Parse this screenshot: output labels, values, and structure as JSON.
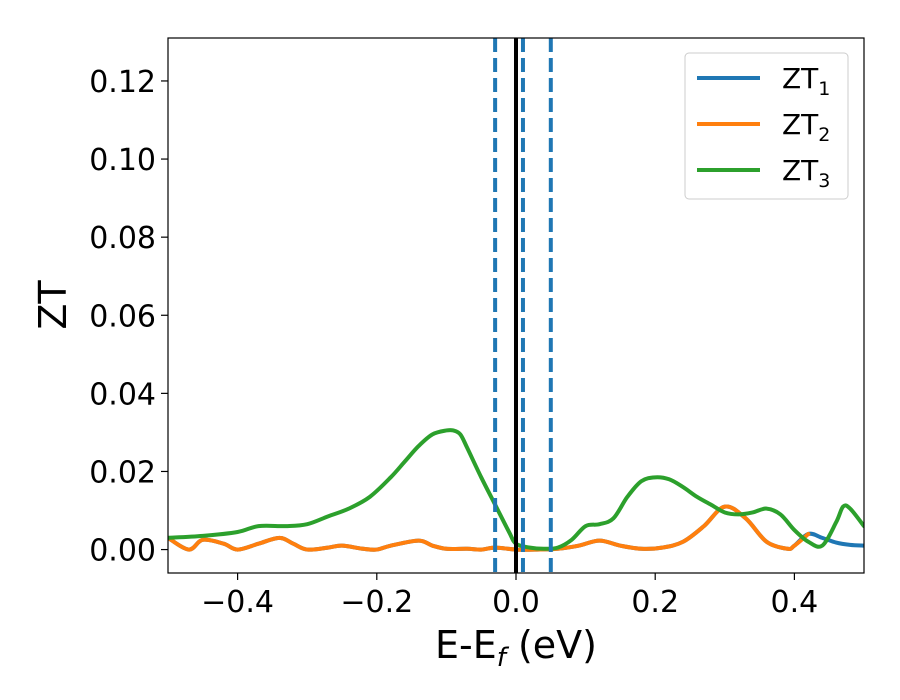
{
  "chart_data": {
    "type": "line",
    "xlabel_main": "E-E",
    "xlabel_sub": "f",
    "xlabel_unit": " (eV)",
    "ylabel": "ZT",
    "xlim": [
      -0.5,
      0.5
    ],
    "ylim": [
      -0.006,
      0.131
    ],
    "x_ticks": [
      -0.4,
      -0.2,
      0.0,
      0.2,
      0.4
    ],
    "x_tick_labels": [
      "−0.4",
      "−0.2",
      "0.0",
      "0.2",
      "0.4"
    ],
    "y_ticks": [
      0.0,
      0.02,
      0.04,
      0.06,
      0.08,
      0.1,
      0.12
    ],
    "y_tick_labels": [
      "0.00",
      "0.02",
      "0.04",
      "0.06",
      "0.08",
      "0.10",
      "0.12"
    ],
    "grid": false,
    "legend_position": "top-right",
    "vertical_lines": [
      {
        "x": 0.0,
        "style": "solid",
        "color": "#000000"
      },
      {
        "x": -0.03,
        "style": "dashed",
        "color": "#1f77b4"
      },
      {
        "x": 0.01,
        "style": "dashed",
        "color": "#1f77b4"
      },
      {
        "x": 0.05,
        "style": "dashed",
        "color": "#1f77b4"
      }
    ],
    "series": [
      {
        "name_main": "ZT",
        "name_sub": "1",
        "color": "#1f77b4",
        "x": [
          -0.5,
          -0.47,
          -0.45,
          -0.42,
          -0.4,
          -0.37,
          -0.34,
          -0.32,
          -0.3,
          -0.27,
          -0.25,
          -0.22,
          -0.2,
          -0.18,
          -0.14,
          -0.12,
          -0.1,
          -0.07,
          -0.05,
          -0.03,
          0.0,
          0.03,
          0.06,
          0.09,
          0.12,
          0.15,
          0.18,
          0.21,
          0.24,
          0.27,
          0.3,
          0.33,
          0.36,
          0.39,
          0.4,
          0.42,
          0.44,
          0.46,
          0.48,
          0.5
        ],
        "y": [
          0.003,
          0.0,
          0.0025,
          0.0015,
          0.0,
          0.0015,
          0.003,
          0.0015,
          0.0,
          0.0005,
          0.001,
          0.0002,
          0.0,
          0.001,
          0.0023,
          0.001,
          0.0002,
          0.0002,
          0.0,
          0.0005,
          0.0,
          0.0,
          0.0002,
          0.001,
          0.0023,
          0.001,
          0.0002,
          0.0005,
          0.002,
          0.006,
          0.011,
          0.008,
          0.002,
          0.0002,
          0.001,
          0.004,
          0.003,
          0.0018,
          0.0012,
          0.001
        ]
      },
      {
        "name_main": "ZT",
        "name_sub": "2",
        "color": "#ff7f0e",
        "x": [
          -0.5,
          -0.47,
          -0.45,
          -0.42,
          -0.4,
          -0.37,
          -0.34,
          -0.32,
          -0.3,
          -0.27,
          -0.25,
          -0.22,
          -0.2,
          -0.18,
          -0.14,
          -0.12,
          -0.1,
          -0.07,
          -0.05,
          -0.03,
          0.0,
          0.03,
          0.06,
          0.09,
          0.12,
          0.15,
          0.18,
          0.21,
          0.24,
          0.27,
          0.3,
          0.33,
          0.36,
          0.39,
          0.4,
          0.42
        ],
        "y": [
          0.003,
          0.0,
          0.0025,
          0.0015,
          0.0,
          0.0015,
          0.003,
          0.0015,
          0.0,
          0.0005,
          0.001,
          0.0002,
          0.0,
          0.001,
          0.0023,
          0.001,
          0.0002,
          0.0002,
          0.0,
          0.0005,
          0.0,
          0.0,
          0.0002,
          0.001,
          0.0023,
          0.001,
          0.0002,
          0.0005,
          0.002,
          0.006,
          0.011,
          0.008,
          0.002,
          0.0002,
          0.001,
          0.004
        ]
      },
      {
        "name_main": "ZT",
        "name_sub": "3",
        "color": "#2ca02c",
        "x": [
          -0.5,
          -0.45,
          -0.4,
          -0.37,
          -0.33,
          -0.3,
          -0.27,
          -0.24,
          -0.21,
          -0.18,
          -0.16,
          -0.14,
          -0.12,
          -0.1,
          -0.09,
          -0.08,
          -0.07,
          -0.05,
          -0.03,
          -0.01,
          0.0,
          0.02,
          0.04,
          0.06,
          0.08,
          0.1,
          0.12,
          0.14,
          0.16,
          0.18,
          0.2,
          0.22,
          0.24,
          0.26,
          0.28,
          0.3,
          0.32,
          0.34,
          0.36,
          0.38,
          0.4,
          0.42,
          0.44,
          0.46,
          0.47,
          0.48,
          0.5
        ],
        "y": [
          0.003,
          0.0035,
          0.0045,
          0.006,
          0.006,
          0.0065,
          0.0085,
          0.0105,
          0.0135,
          0.0185,
          0.0225,
          0.0265,
          0.0295,
          0.0305,
          0.0305,
          0.0295,
          0.026,
          0.0185,
          0.0115,
          0.0045,
          0.0015,
          0.0005,
          0.0002,
          0.0005,
          0.0025,
          0.006,
          0.0065,
          0.008,
          0.0135,
          0.0175,
          0.0185,
          0.018,
          0.016,
          0.0135,
          0.0115,
          0.0095,
          0.009,
          0.0095,
          0.0105,
          0.009,
          0.005,
          0.002,
          0.001,
          0.007,
          0.011,
          0.0105,
          0.006
        ]
      }
    ]
  }
}
